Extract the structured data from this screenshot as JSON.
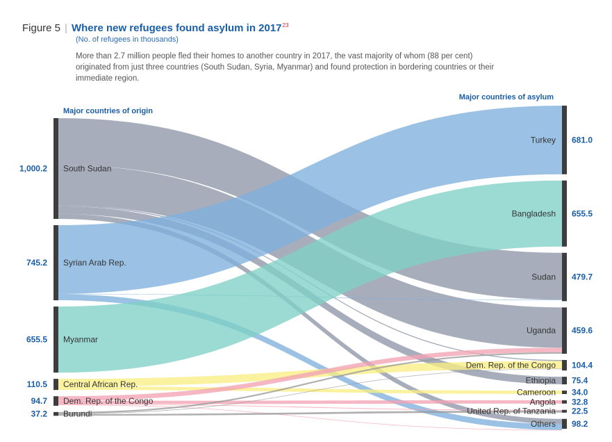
{
  "figure": {
    "label": "Figure 5",
    "separator": "|",
    "title": "Where new refugees found asylum in 2017",
    "footnote_ref": "23",
    "subtitle": "(No. of refugees in thousands)",
    "description": "More than 2.7 million people fled their homes to another country in 2017, the vast majority of whom (88 per cent) originated from just three countries (South Sudan, Syria, Myanmar) and found protection in bordering countries or their immediate region."
  },
  "chart_data": {
    "type": "sankey",
    "unit": "thousands of refugees",
    "left_header": "Major countries of origin",
    "right_header": "Major countries of asylum",
    "origins": [
      {
        "id": "ss",
        "name": "South Sudan",
        "value": 1000.2,
        "value_label": "1,000.2",
        "color": "#8e96a8"
      },
      {
        "id": "sy",
        "name": "Syrian Arab Rep.",
        "value": 745.2,
        "value_label": "745.2",
        "color": "#7fb0dc"
      },
      {
        "id": "my",
        "name": "Myanmar",
        "value": 655.5,
        "value_label": "655.5",
        "color": "#7fd1c6"
      },
      {
        "id": "ca",
        "name": "Central African Rep.",
        "value": 110.5,
        "value_label": "110.5",
        "color": "#f8ee84"
      },
      {
        "id": "dr",
        "name": "Dem. Rep. of the Congo",
        "value": 94.7,
        "value_label": "94.7",
        "color": "#f2a3b3"
      },
      {
        "id": "bu",
        "name": "Burundi",
        "value": 37.2,
        "value_label": "37.2",
        "color": "#9a9a9a"
      }
    ],
    "destinations": [
      {
        "id": "tr",
        "name": "Turkey",
        "value": 681.0,
        "value_label": "681.0"
      },
      {
        "id": "bd",
        "name": "Bangladesh",
        "value": 655.5,
        "value_label": "655.5"
      },
      {
        "id": "sd",
        "name": "Sudan",
        "value": 479.7,
        "value_label": "479.7"
      },
      {
        "id": "ug",
        "name": "Uganda",
        "value": 459.6,
        "value_label": "459.6"
      },
      {
        "id": "cd",
        "name": "Dem. Rep. of the Congo",
        "value": 104.4,
        "value_label": "104.4"
      },
      {
        "id": "et",
        "name": "Ethiopia",
        "value": 75.4,
        "value_label": "75.4"
      },
      {
        "id": "cm",
        "name": "Cameroon",
        "value": 34.0,
        "value_label": "34.0"
      },
      {
        "id": "ao",
        "name": "Angola",
        "value": 32.8,
        "value_label": "32.8"
      },
      {
        "id": "tz",
        "name": "United Rep. of Tanzania",
        "value": 22.5,
        "value_label": "22.5"
      },
      {
        "id": "ot",
        "name": "Others",
        "value": 98.2,
        "value_label": "98.2"
      }
    ],
    "flows": [
      {
        "from": "ss",
        "to": "sd",
        "value": 465
      },
      {
        "from": "ss",
        "to": "ug",
        "value": 400
      },
      {
        "from": "ss",
        "to": "cd",
        "value": 10
      },
      {
        "from": "ss",
        "to": "et",
        "value": 75
      },
      {
        "from": "ss",
        "to": "ot",
        "value": 50
      },
      {
        "from": "sy",
        "to": "tr",
        "value": 681
      },
      {
        "from": "sy",
        "to": "sd",
        "value": 5
      },
      {
        "from": "sy",
        "to": "ot",
        "value": 59
      },
      {
        "from": "my",
        "to": "bd",
        "value": 655.5
      },
      {
        "from": "ca",
        "to": "cd",
        "value": 76
      },
      {
        "from": "ca",
        "to": "cm",
        "value": 34
      },
      {
        "from": "dr",
        "to": "ug",
        "value": 45
      },
      {
        "from": "dr",
        "to": "ao",
        "value": 32.8
      },
      {
        "from": "dr",
        "to": "tz",
        "value": 6
      },
      {
        "from": "dr",
        "to": "ot",
        "value": 5
      },
      {
        "from": "bu",
        "to": "ug",
        "value": 15
      },
      {
        "from": "bu",
        "to": "cd",
        "value": 5
      },
      {
        "from": "bu",
        "to": "tz",
        "value": 16.5
      }
    ]
  }
}
